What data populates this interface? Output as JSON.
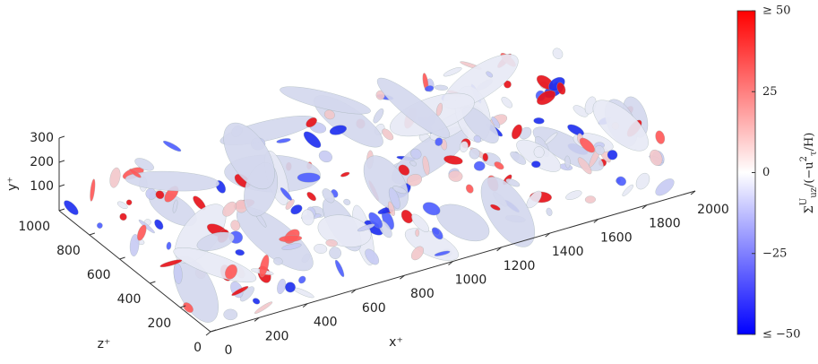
{
  "chart_data": {
    "type": "isosurface3d",
    "x_label": "x⁺",
    "y_label": "y⁺",
    "z_label": "z⁺",
    "xlim": [
      0,
      2000
    ],
    "xticks": [
      0,
      200,
      400,
      600,
      800,
      1000,
      1200,
      1400,
      1600,
      1800,
      2000
    ],
    "zlim": [
      0,
      1000
    ],
    "zticks": [
      0,
      200,
      400,
      600,
      800,
      1000
    ],
    "ylim": [
      0,
      300
    ],
    "yticks": [
      100,
      200,
      300
    ],
    "colorbar": {
      "clim": [
        -50,
        50
      ],
      "ticks": [
        {
          "value": 50,
          "label": "≥ 50"
        },
        25,
        0,
        {
          "value": -25,
          "label": "−25"
        },
        {
          "value": -50,
          "label": "≤ −50"
        }
      ],
      "colors": [
        "#0000ff",
        "#ffffff",
        "#ff0000"
      ],
      "label_parts": [
        "Σ",
        "U",
        "uz",
        "/(−u",
        "2",
        "τ",
        "/H)"
      ]
    }
  }
}
